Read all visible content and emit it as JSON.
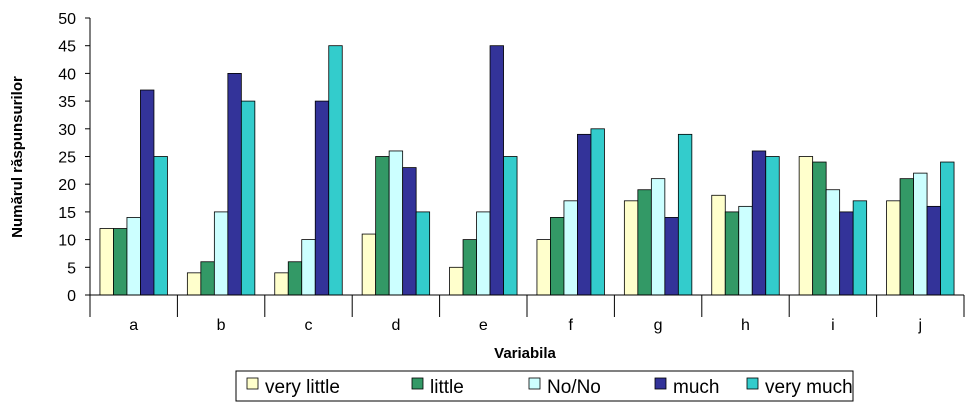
{
  "chart_data": {
    "type": "bar",
    "title": "",
    "xlabel": "Variabila",
    "ylabel": "Numărul răspunsurilor",
    "ylim": [
      0,
      50
    ],
    "yticks": [
      0,
      5,
      10,
      15,
      20,
      25,
      30,
      35,
      40,
      45,
      50
    ],
    "categories": [
      "a",
      "b",
      "c",
      "d",
      "e",
      "f",
      "g",
      "h",
      "i",
      "j"
    ],
    "grid": false,
    "legend_position": "bottom",
    "series": [
      {
        "name": "very little",
        "color": "#FFFFCC",
        "values": [
          12,
          4,
          4,
          11,
          5,
          10,
          17,
          18,
          25,
          17
        ]
      },
      {
        "name": "little",
        "color": "#339966",
        "values": [
          12,
          6,
          6,
          25,
          10,
          14,
          19,
          15,
          24,
          21
        ]
      },
      {
        "name": "No/No",
        "color": "#CCFFFF",
        "values": [
          14,
          15,
          10,
          26,
          15,
          17,
          21,
          16,
          19,
          22
        ]
      },
      {
        "name": "much",
        "color": "#333399",
        "values": [
          37,
          40,
          35,
          23,
          45,
          29,
          14,
          26,
          15,
          16
        ]
      },
      {
        "name": "very much",
        "color": "#33CCCC",
        "values": [
          25,
          35,
          45,
          15,
          25,
          30,
          29,
          25,
          17,
          24
        ]
      }
    ]
  }
}
